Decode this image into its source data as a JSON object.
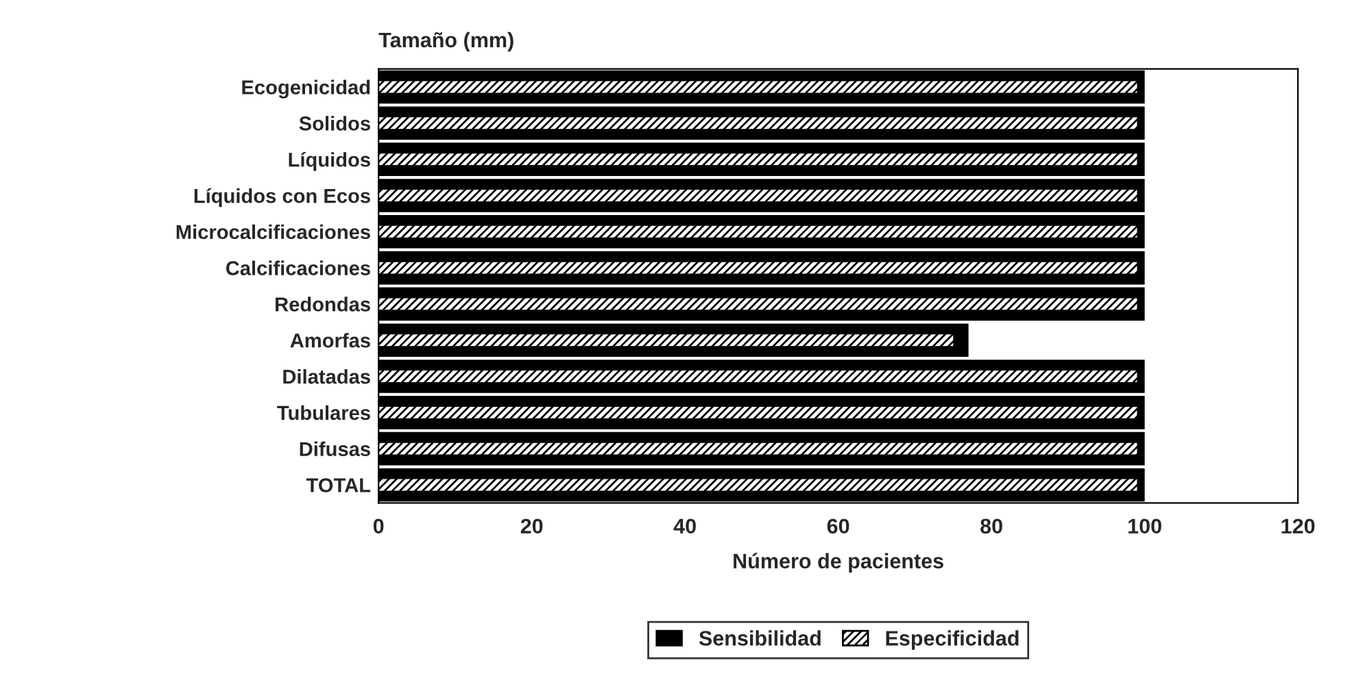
{
  "chart_data": {
    "type": "bar",
    "orientation": "horizontal",
    "title": "Tamaño (mm)",
    "xlabel": "Número de pacientes",
    "categories": [
      "Ecogenicidad",
      "Solidos",
      "Líquidos",
      "Líquidos con Ecos",
      "Microcalcificaciones",
      "Calcificaciones",
      "Redondas",
      "Amorfas",
      "Dilatadas",
      "Tubulares",
      "Difusas",
      "TOTAL"
    ],
    "series": [
      {
        "name": "Sensibilidad",
        "color": "#000000",
        "values": [
          100,
          100,
          100,
          100,
          100,
          100,
          100,
          77,
          100,
          100,
          100,
          100
        ]
      },
      {
        "name": "Especificidad",
        "color": "#ffffff",
        "values": [
          99,
          99,
          99,
          99,
          99,
          99,
          99,
          75,
          99,
          99,
          99,
          99
        ]
      }
    ],
    "xlim": [
      0,
      120
    ],
    "xticks": [
      0,
      20,
      40,
      60,
      80,
      100,
      120
    ],
    "grid": false,
    "legend": "bottom"
  }
}
